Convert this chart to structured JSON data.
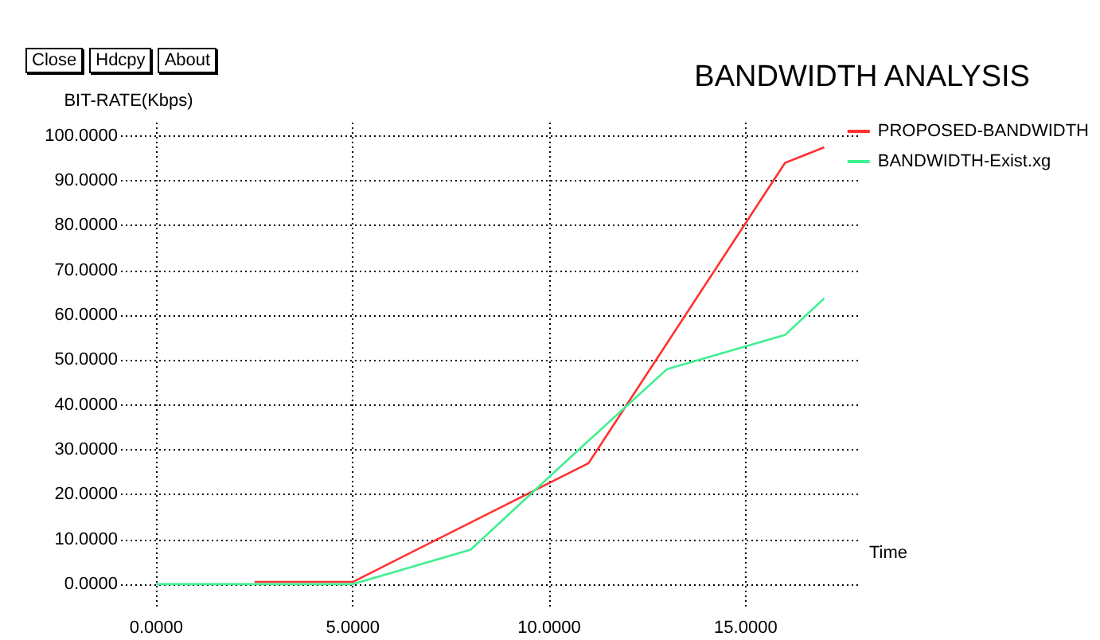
{
  "chart_data": {
    "type": "line",
    "title": "BANDWIDTH ANALYSIS",
    "xlabel": "Time",
    "ylabel": "BIT-RATE(Kbps)",
    "annotations": [
      "Close",
      "Hdcpy",
      "About"
    ],
    "xlim": [
      -0.9,
      17.9
    ],
    "ylim": [
      -5,
      103
    ],
    "xticks": [
      {
        "value": 0,
        "label": "0.0000"
      },
      {
        "value": 5,
        "label": "5.0000"
      },
      {
        "value": 10,
        "label": "10.0000"
      },
      {
        "value": 15,
        "label": "15.0000"
      }
    ],
    "yticks": [
      {
        "value": 0,
        "label": "0.0000"
      },
      {
        "value": 10,
        "label": "10.0000"
      },
      {
        "value": 20,
        "label": "20.0000"
      },
      {
        "value": 30,
        "label": "30.0000"
      },
      {
        "value": 40,
        "label": "40.0000"
      },
      {
        "value": 50,
        "label": "50.0000"
      },
      {
        "value": 60,
        "label": "60.0000"
      },
      {
        "value": 70,
        "label": "70.0000"
      },
      {
        "value": 80,
        "label": "80.0000"
      },
      {
        "value": 90,
        "label": "90.0000"
      },
      {
        "value": 100,
        "label": "100.0000"
      }
    ],
    "grid": true,
    "legend": "top right",
    "marker": "none",
    "series": [
      {
        "name": "PROPOSED-BANDWIDTH",
        "color": "#ff3030",
        "x": [
          2.5,
          5,
          11,
          16,
          17
        ],
        "values": [
          0.5,
          0.5,
          27,
          94,
          97.5
        ]
      },
      {
        "name": "BANDWIDTH-Exist.xg",
        "color": "#40f090",
        "x": [
          0,
          5,
          8,
          10.5,
          13,
          16,
          17
        ],
        "values": [
          0,
          0,
          7.7,
          28,
          48,
          55.6,
          63.8
        ]
      }
    ]
  }
}
